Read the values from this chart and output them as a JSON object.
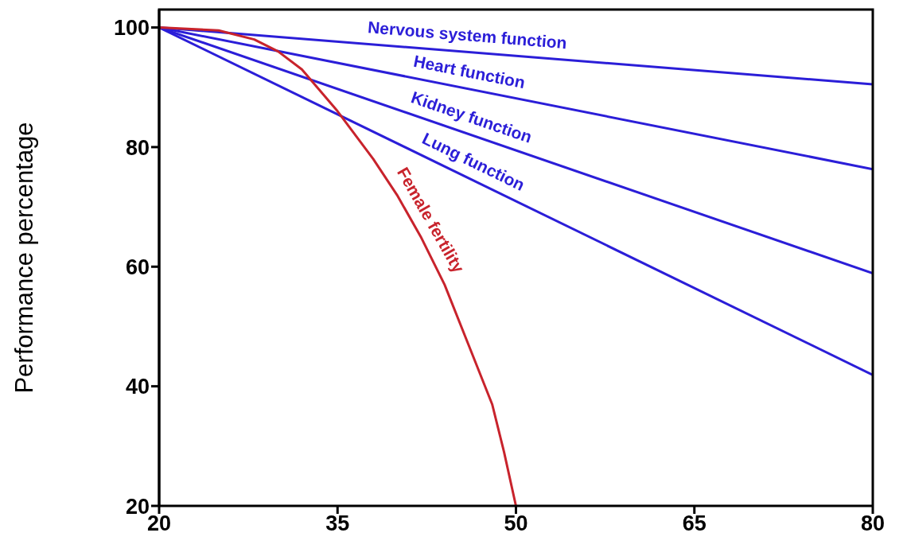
{
  "chart_data": {
    "type": "line",
    "ylabel": "Performance percentage",
    "xlim": [
      20,
      80
    ],
    "xticks": [
      20,
      35,
      50,
      65,
      80
    ],
    "ylim": [
      20,
      103
    ],
    "yticks": [
      20,
      40,
      60,
      80,
      100
    ],
    "marker": "none",
    "line_style": "solid",
    "series": [
      {
        "name": "Nervous system function",
        "color": "#2b1ed8",
        "x": [
          20,
          80
        ],
        "values": [
          100,
          90.5
        ]
      },
      {
        "name": "Heart function",
        "color": "#2b1ed8",
        "x": [
          20,
          80
        ],
        "values": [
          100,
          76.3
        ]
      },
      {
        "name": "Kidney function",
        "color": "#2b1ed8",
        "x": [
          20,
          80
        ],
        "values": [
          100,
          58.9
        ]
      },
      {
        "name": "Lung function",
        "color": "#2b1ed8",
        "x": [
          20,
          80
        ],
        "values": [
          100,
          41.9
        ]
      },
      {
        "name": "Female fertility",
        "color": "#c8232c",
        "x": [
          20,
          25,
          28,
          30,
          32,
          35,
          38,
          40,
          42,
          44,
          46,
          48,
          49,
          50
        ],
        "values": [
          100,
          99.5,
          98,
          96,
          93,
          86,
          78,
          72,
          65,
          57,
          47,
          37,
          29,
          20
        ]
      }
    ]
  }
}
